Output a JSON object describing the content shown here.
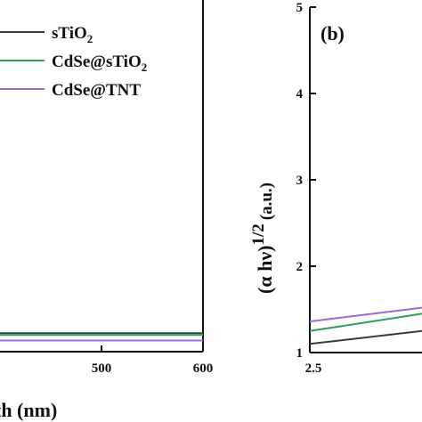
{
  "chart_data": [
    {
      "type": "line",
      "panel": "(a)",
      "xlabel_fragment": "th (nm)",
      "x_ticks": [
        "500",
        "600"
      ],
      "xlim_visible": [
        400,
        600
      ],
      "legend": {
        "placement": "top-right",
        "entries": [
          {
            "name_main": "sTiO",
            "name_sub": "2",
            "name_tail": "",
            "color": "#3b3b3b"
          },
          {
            "name_main": "CdSe@sTiO",
            "name_sub": "2",
            "name_tail": "",
            "color": "#2e9e5b"
          },
          {
            "name_main": "CdSe@TNT",
            "name_sub": "",
            "name_tail": "",
            "color": "#9b6bd6"
          }
        ]
      },
      "series": [
        {
          "name": "sTiO2",
          "color": "#3b3b3b",
          "x": [
            400,
            450,
            500,
            550,
            600
          ],
          "y": [
            0.2,
            0.2,
            0.2,
            0.2,
            0.2
          ]
        },
        {
          "name": "CdSe@sTiO2",
          "color": "#2e9e5b",
          "x": [
            400,
            450,
            500,
            550,
            600
          ],
          "y": [
            0.18,
            0.18,
            0.18,
            0.18,
            0.18
          ]
        },
        {
          "name": "CdSe@TNT",
          "color": "#9b6bd6",
          "x": [
            400,
            450,
            500,
            550,
            600
          ],
          "y": [
            0.12,
            0.12,
            0.12,
            0.12,
            0.12
          ]
        }
      ]
    },
    {
      "type": "line",
      "panel": "(b)",
      "panel_label": "(b)",
      "ylabel_main": "(α hν)",
      "ylabel_exp": "1/2",
      "ylabel_unit": "(a.u.)",
      "ylim": [
        1,
        5
      ],
      "y_ticks": [
        "1",
        "2",
        "3",
        "4",
        "5"
      ],
      "x_ticks": [
        "2.5"
      ],
      "xlim_visible": [
        2.5,
        2.9
      ],
      "series": [
        {
          "name": "sTiO2",
          "color": "#3b3b3b",
          "x": [
            2.5,
            2.9
          ],
          "y": [
            1.1,
            1.25
          ]
        },
        {
          "name": "CdSe@sTiO2",
          "color": "#2e9e5b",
          "x": [
            2.5,
            2.9
          ],
          "y": [
            1.25,
            1.45
          ]
        },
        {
          "name": "CdSe@TNT",
          "color": "#9b6bd6",
          "x": [
            2.5,
            2.9
          ],
          "y": [
            1.36,
            1.52
          ]
        }
      ]
    }
  ]
}
